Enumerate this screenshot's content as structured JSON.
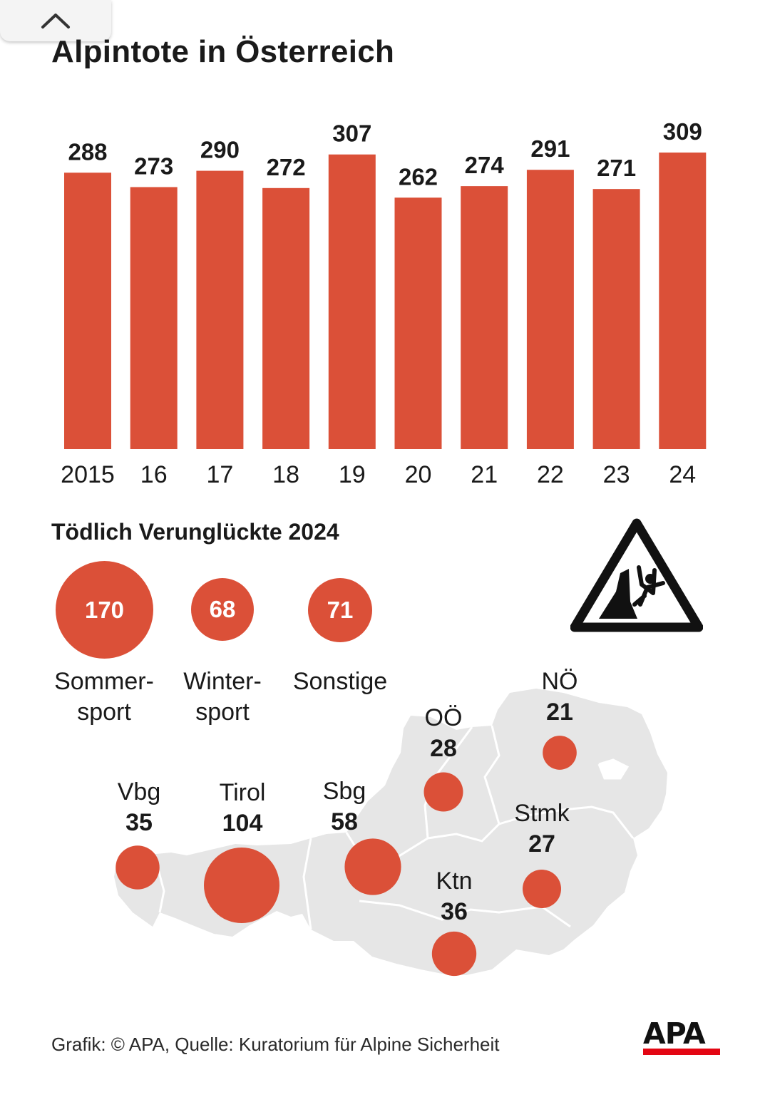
{
  "title": "Alpintote in Österreich",
  "subtitle": "Tödlich Verunglückte 2024",
  "colors": {
    "accent": "#db5038",
    "map": "#e6e6e6",
    "map_border": "#ffffff",
    "text": "#1a1a1a"
  },
  "categories": [
    {
      "value": "170",
      "label_line1": "Sommer-",
      "label_line2": "sport"
    },
    {
      "value": "68",
      "label_line1": "Winter-",
      "label_line2": "sport"
    },
    {
      "value": "71",
      "label_line1": "Sonstige",
      "label_line2": ""
    }
  ],
  "regions": [
    {
      "name": "Vbg",
      "value": 35
    },
    {
      "name": "Tirol",
      "value": 104
    },
    {
      "name": "Sbg",
      "value": 58
    },
    {
      "name": "OÖ",
      "value": 28
    },
    {
      "name": "NÖ",
      "value": 21
    },
    {
      "name": "Stmk",
      "value": 27
    },
    {
      "name": "Ktn",
      "value": 36
    }
  ],
  "source": "Grafik: © APA, Quelle: Kuratorium für Alpine Sicherheit",
  "logo_text": "APA",
  "icons": {
    "collapse": "chevron-up-icon",
    "warning": "falling-climber-warning-icon"
  },
  "chart_data": {
    "type": "bar",
    "categories": [
      "2015",
      "16",
      "17",
      "18",
      "19",
      "20",
      "21",
      "22",
      "23",
      "24"
    ],
    "values": [
      288,
      273,
      290,
      272,
      307,
      262,
      274,
      291,
      271,
      309
    ],
    "title": "Alpintote in Österreich",
    "xlabel": "",
    "ylabel": "",
    "ylim": [
      0,
      309
    ],
    "grid": false,
    "data_labels": true
  }
}
